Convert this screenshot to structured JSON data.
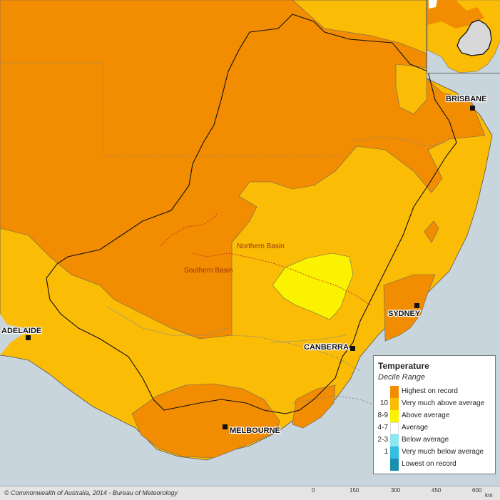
{
  "legend": {
    "title": "Temperature",
    "subtitle": "Decile Range",
    "items": [
      {
        "code": "",
        "label": "Highest on record",
        "color": "#f28c00"
      },
      {
        "code": "10",
        "label": "Very much above average",
        "color": "#fbbc05"
      },
      {
        "code": "8-9",
        "label": "Above average",
        "color": "#fbf200"
      },
      {
        "code": "4-7",
        "label": "Average",
        "color": "#ffffff"
      },
      {
        "code": "2-3",
        "label": "Below average",
        "color": "#8de6f0"
      },
      {
        "code": "1",
        "label": "Very much below average",
        "color": "#34bedf"
      },
      {
        "code": "",
        "label": "Lowest on record",
        "color": "#1c8fae"
      }
    ]
  },
  "cities": {
    "brisbane": "BRISBANE",
    "sydney": "SYDNEY",
    "canberra": "CANBERRA",
    "melbourne": "MELBOURNE",
    "adelaide": "ADELAIDE"
  },
  "basins": {
    "northern": "Northern Basin",
    "southern": "Southern Basin"
  },
  "scale": {
    "ticks": [
      "0",
      "150",
      "300",
      "450",
      "600"
    ],
    "unit": "km"
  },
  "footer": {
    "copyright": "© Commonwealth of Australia, 2014 - Bureau of Meteorology"
  },
  "colors": {
    "ocean": "#c8d5dd",
    "highest": "#f28c00",
    "very_much_above": "#fbbc05",
    "above": "#fbf200"
  }
}
